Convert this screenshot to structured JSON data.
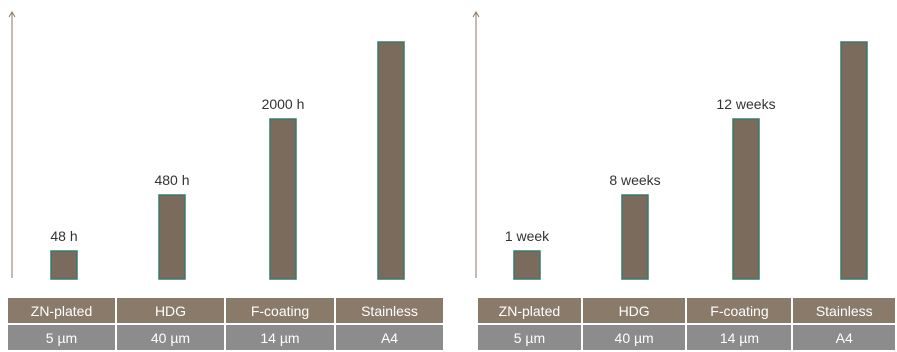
{
  "colors": {
    "bar_fill": "#7b6b5c",
    "bar_border": "#3a7a68",
    "header_row": "#8a7a6a",
    "value_row": "#8c8c8c",
    "axis": "#8a7868"
  },
  "chart_data": [
    {
      "type": "bar",
      "categories": [
        "ZN-plated",
        "HDG",
        "F-coating",
        "Stainless"
      ],
      "values": [
        48,
        480,
        2000,
        null
      ],
      "data_labels": [
        "48 h",
        "480 h",
        "2000 h",
        ""
      ],
      "table": {
        "names": [
          "ZN-plated",
          "HDG",
          "F-coating",
          "Stainless"
        ],
        "thickness": [
          "5 µm",
          "40 µm",
          "14 µm",
          "A4"
        ]
      }
    },
    {
      "type": "bar",
      "categories": [
        "ZN-plated",
        "HDG",
        "F-coating",
        "Stainless"
      ],
      "values": [
        1,
        8,
        12,
        null
      ],
      "data_labels": [
        "1 week",
        "8 weeks",
        "12 weeks",
        ""
      ],
      "table": {
        "names": [
          "ZN-plated",
          "HDG",
          "F-coating",
          "Stainless"
        ],
        "thickness": [
          "5 µm",
          "40 µm",
          "14 µm",
          "A4"
        ]
      }
    }
  ]
}
